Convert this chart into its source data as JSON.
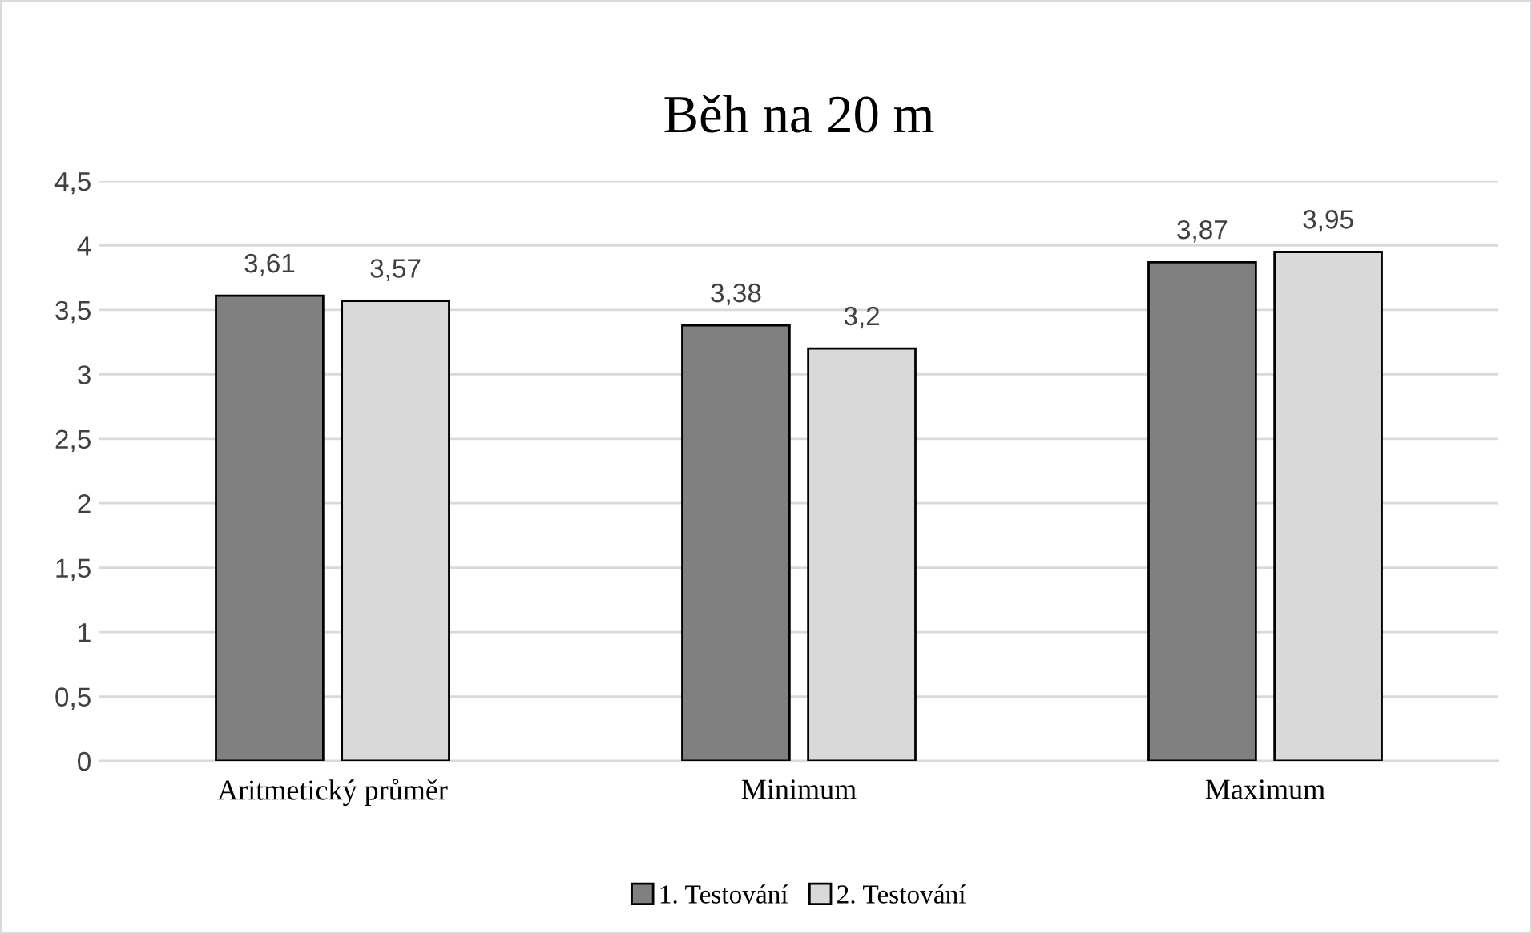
{
  "chart_data": {
    "type": "bar",
    "title": "Běh na 20 m",
    "categories": [
      "Aritmetický průměr",
      "Minimum",
      "Maximum"
    ],
    "series": [
      {
        "name": "1. Testování",
        "color": "#808080",
        "values": [
          3.61,
          3.38,
          3.87
        ],
        "value_labels": [
          "3,61",
          "3,38",
          "3,87"
        ]
      },
      {
        "name": "2. Testování",
        "color": "#d9d9d9",
        "values": [
          3.57,
          3.2,
          3.95
        ],
        "value_labels": [
          "3,57",
          "3,2",
          "3,95"
        ]
      }
    ],
    "ylim": [
      0,
      4.5
    ],
    "yticks": [
      0,
      {
        "value": 0.5,
        "label": "0,5"
      },
      1,
      {
        "value": 1.5,
        "label": "1,5"
      },
      2,
      {
        "value": 2.5,
        "label": "2,5"
      },
      3,
      {
        "value": 3.5,
        "label": "3,5"
      },
      4,
      {
        "value": 4.5,
        "label": "4,5"
      }
    ],
    "grid": "y",
    "legend": "bottom"
  }
}
